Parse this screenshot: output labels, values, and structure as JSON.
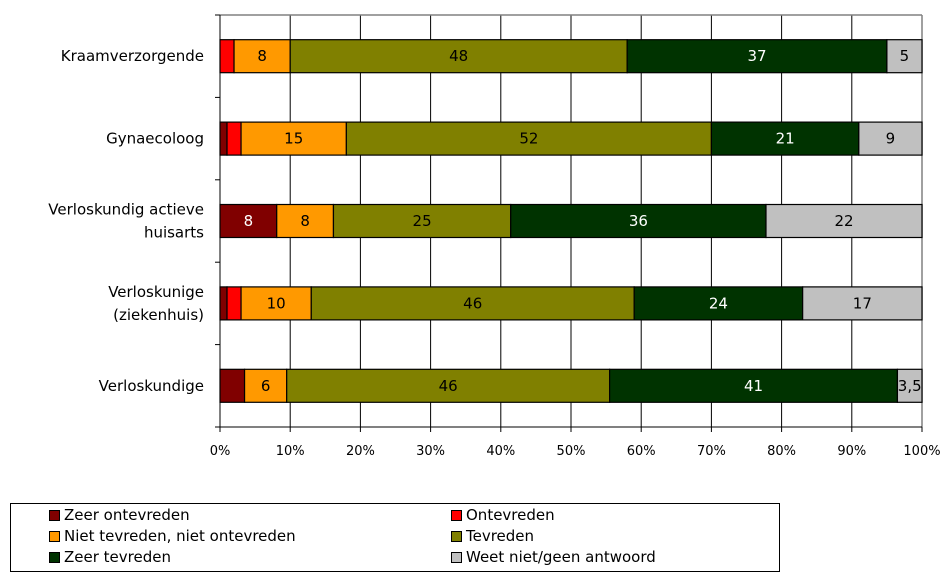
{
  "chart_data": {
    "type": "bar",
    "orientation": "horizontal",
    "stacked": "percent",
    "categories": [
      [
        "Kraamverzorgende"
      ],
      [
        "Gynaecoloog"
      ],
      [
        "Verloskundig actieve",
        "huisarts"
      ],
      [
        "Verloskunige",
        "(ziekenhuis)"
      ],
      [
        "Verloskundige"
      ]
    ],
    "series": [
      {
        "name": "Zeer ontevreden",
        "color": "#800000",
        "values": [
          0,
          1,
          8,
          1,
          3.5
        ],
        "labels": [
          "",
          "",
          "8",
          "",
          ""
        ]
      },
      {
        "name": "Ontevreden",
        "color": "#ff0000",
        "values": [
          2,
          2,
          0,
          2,
          0
        ],
        "labels": [
          "",
          "",
          "",
          "",
          ""
        ]
      },
      {
        "name": "Niet tevreden, niet ontevreden",
        "color": "#ff9900",
        "values": [
          8,
          15,
          8,
          10,
          6
        ],
        "labels": [
          "8",
          "15",
          "8",
          "10",
          "6"
        ]
      },
      {
        "name": "Tevreden",
        "color": "#808000",
        "values": [
          48,
          52,
          25,
          46,
          46
        ],
        "labels": [
          "48",
          "52",
          "25",
          "46",
          "46"
        ]
      },
      {
        "name": "Zeer tevreden",
        "color": "#003300",
        "values": [
          37,
          21,
          36,
          24,
          41
        ],
        "labels": [
          "37",
          "21",
          "36",
          "24",
          "41"
        ]
      },
      {
        "name": "Weet niet/geen antwoord",
        "color": "#c0c0c0",
        "values": [
          5,
          9,
          22,
          17,
          3.5
        ],
        "labels": [
          "5",
          "9",
          "22",
          "17",
          "3,5"
        ]
      }
    ],
    "x_ticks": [
      "0%",
      "10%",
      "20%",
      "30%",
      "40%",
      "50%",
      "60%",
      "70%",
      "80%",
      "90%",
      "100%"
    ],
    "xlim": [
      0,
      100
    ],
    "grid": "vertical",
    "legend_position": "bottom"
  }
}
